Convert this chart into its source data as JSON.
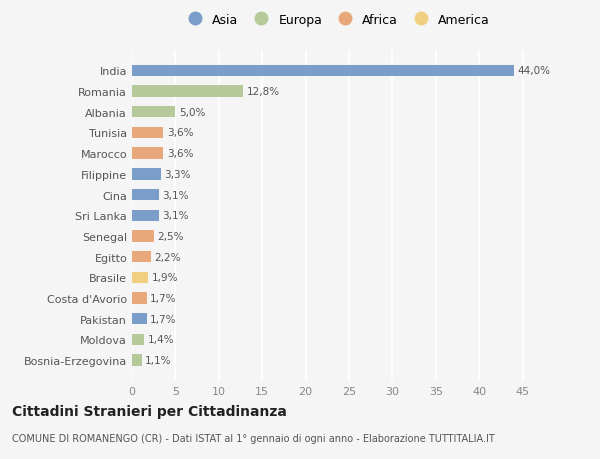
{
  "countries": [
    "India",
    "Romania",
    "Albania",
    "Tunisia",
    "Marocco",
    "Filippine",
    "Cina",
    "Sri Lanka",
    "Senegal",
    "Egitto",
    "Brasile",
    "Costa d'Avorio",
    "Pakistan",
    "Moldova",
    "Bosnia-Erzegovina"
  ],
  "values": [
    44.0,
    12.8,
    5.0,
    3.6,
    3.6,
    3.3,
    3.1,
    3.1,
    2.5,
    2.2,
    1.9,
    1.7,
    1.7,
    1.4,
    1.1
  ],
  "labels": [
    "44,0%",
    "12,8%",
    "5,0%",
    "3,6%",
    "3,6%",
    "3,3%",
    "3,1%",
    "3,1%",
    "2,5%",
    "2,2%",
    "1,9%",
    "1,7%",
    "1,7%",
    "1,4%",
    "1,1%"
  ],
  "continents": [
    "Asia",
    "Europa",
    "Europa",
    "Africa",
    "Africa",
    "Asia",
    "Asia",
    "Asia",
    "Africa",
    "Africa",
    "America",
    "Africa",
    "Asia",
    "Europa",
    "Europa"
  ],
  "colors": {
    "Asia": "#7b9dc9",
    "Europa": "#b5c99a",
    "Africa": "#e8a87c",
    "America": "#f0d080"
  },
  "legend_order": [
    "Asia",
    "Europa",
    "Africa",
    "America"
  ],
  "title": "Cittadini Stranieri per Cittadinanza",
  "subtitle": "COMUNE DI ROMANENGO (CR) - Dati ISTAT al 1° gennaio di ogni anno - Elaborazione TUTTITALIA.IT",
  "xlim": [
    0,
    47
  ],
  "xticks": [
    0,
    5,
    10,
    15,
    20,
    25,
    30,
    35,
    40,
    45
  ],
  "background_color": "#f5f5f5",
  "grid_color": "#ffffff"
}
